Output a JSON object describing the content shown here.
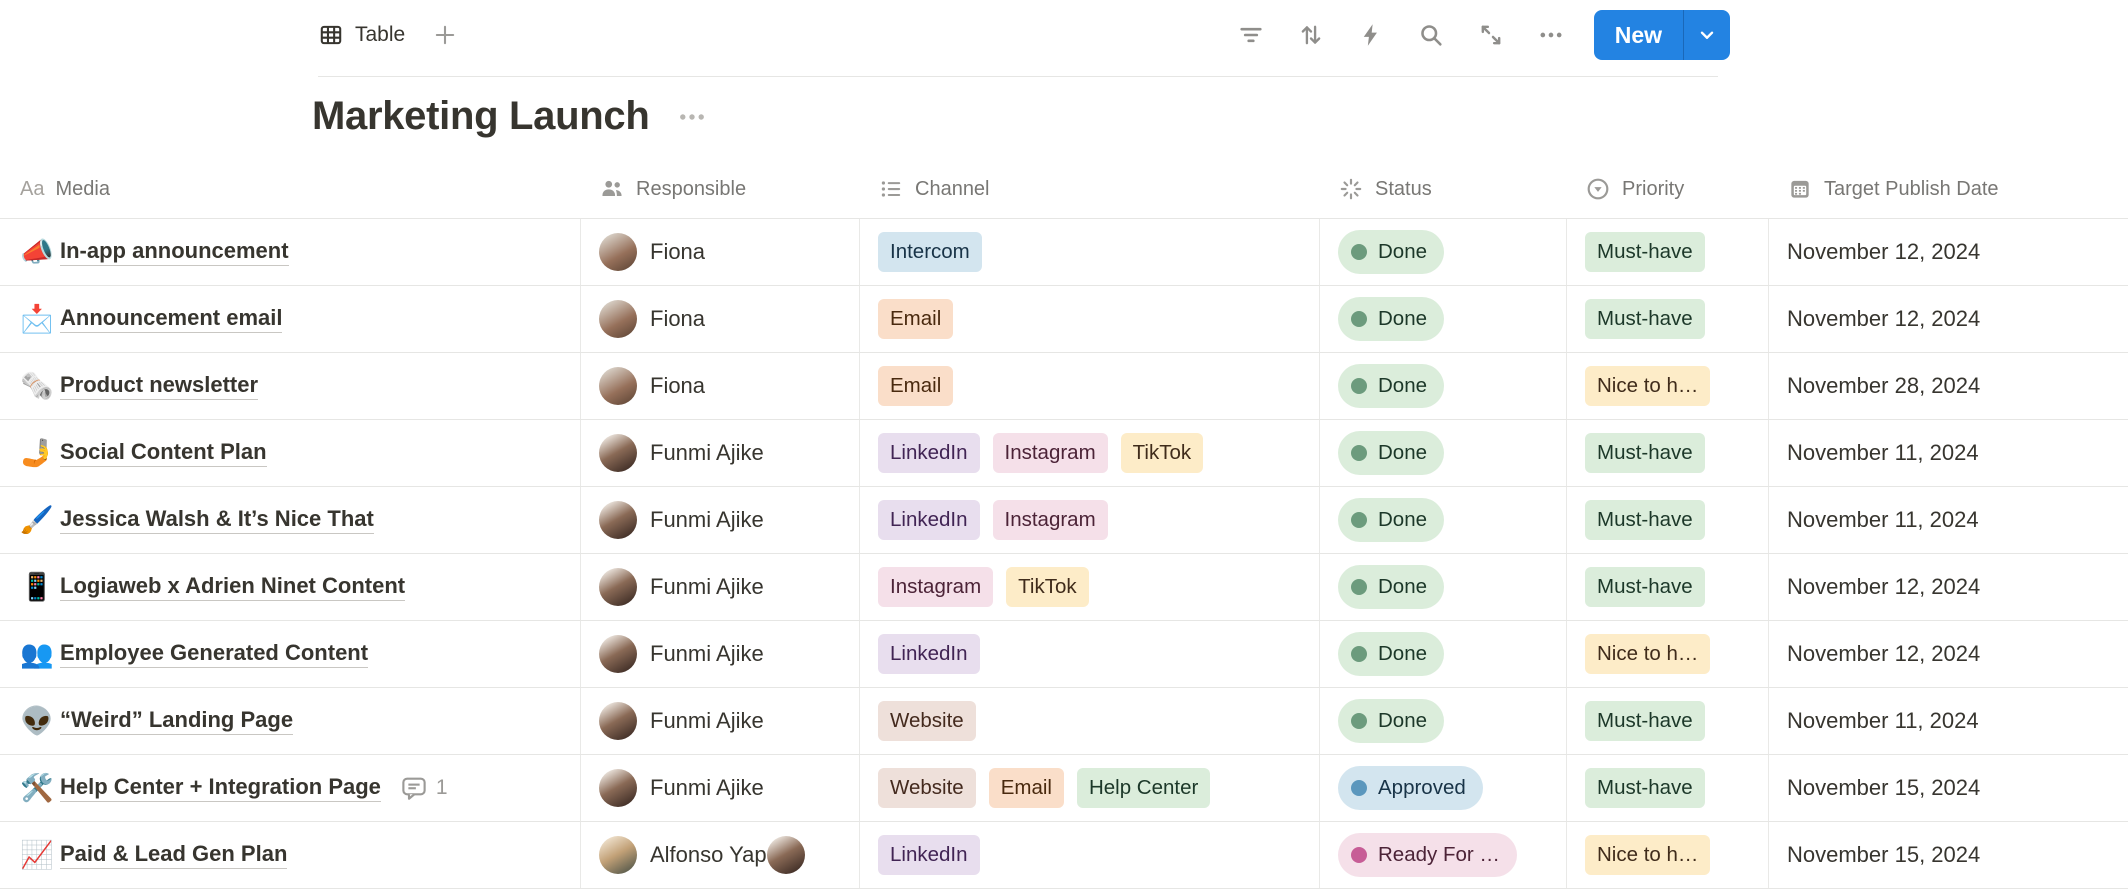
{
  "toolbar": {
    "view_tab": {
      "label": "Table",
      "icon": "table-grid-icon"
    },
    "add_view_icon": "plus-icon",
    "action_icons": [
      "filter-icon",
      "sort-icon",
      "automation-icon",
      "search-icon",
      "expand-icon",
      "more-icon"
    ],
    "new_button": {
      "label": "New",
      "chevron_icon": "chevron-down-icon"
    }
  },
  "page": {
    "title": "Marketing Launch",
    "title_more_icon": "more-icon"
  },
  "colors": {
    "accent_blue": "#2383e2",
    "row_border": "#e9e9e7",
    "header_text": "#787774",
    "tags": {
      "blue": {
        "bg": "#d3e5ef",
        "text": "#183347"
      },
      "orange": {
        "bg": "#fadec9",
        "text": "#49290e"
      },
      "purple": {
        "bg": "#e8deee",
        "text": "#412454"
      },
      "pink": {
        "bg": "#f5e0e9",
        "text": "#4c2337"
      },
      "yellow": {
        "bg": "#fdecc8",
        "text": "#402c1b"
      },
      "brown": {
        "bg": "#eee0da",
        "text": "#442a1e"
      },
      "green": {
        "bg": "#dbeddb",
        "text": "#1c3829"
      }
    },
    "status": {
      "green": {
        "bg": "#dbeddb",
        "dot": "#6c9b7d",
        "text": "#1c3829"
      },
      "blue": {
        "bg": "#d3e5ef",
        "dot": "#5b97bd",
        "text": "#183347"
      },
      "pink": {
        "bg": "#f5e0e9",
        "dot": "#c75d96",
        "text": "#4c2337"
      }
    }
  },
  "table": {
    "columns": [
      {
        "label": "Media",
        "icon": "text-property-icon",
        "icon_glyph": "Aa"
      },
      {
        "label": "Responsible",
        "icon": "people-icon"
      },
      {
        "label": "Channel",
        "icon": "list-icon"
      },
      {
        "label": "Status",
        "icon": "status-icon"
      },
      {
        "label": "Priority",
        "icon": "select-icon"
      },
      {
        "label": "Target Publish Date",
        "icon": "calendar-icon"
      }
    ],
    "rows": [
      {
        "emoji": "📣",
        "title": "In-app announcement",
        "people": [
          {
            "name": "Fiona",
            "avatar": "fiona"
          }
        ],
        "channels": [
          {
            "label": "Intercom",
            "color": "blue"
          }
        ],
        "status": {
          "label": "Done",
          "color": "green"
        },
        "priority": {
          "label": "Must-have",
          "color": "green"
        },
        "date": "November 12, 2024"
      },
      {
        "emoji": "📩",
        "title": "Announcement email",
        "people": [
          {
            "name": "Fiona",
            "avatar": "fiona"
          }
        ],
        "channels": [
          {
            "label": "Email",
            "color": "orange"
          }
        ],
        "status": {
          "label": "Done",
          "color": "green"
        },
        "priority": {
          "label": "Must-have",
          "color": "green"
        },
        "date": "November 12, 2024"
      },
      {
        "emoji": "🗞️",
        "title": "Product newsletter",
        "people": [
          {
            "name": "Fiona",
            "avatar": "fiona"
          }
        ],
        "channels": [
          {
            "label": "Email",
            "color": "orange"
          }
        ],
        "status": {
          "label": "Done",
          "color": "green"
        },
        "priority": {
          "label": "Nice to h…",
          "color": "yellow"
        },
        "date": "November 28, 2024"
      },
      {
        "emoji": "🤳",
        "title": "Social Content Plan",
        "people": [
          {
            "name": "Funmi Ajike",
            "avatar": "funmi"
          }
        ],
        "channels": [
          {
            "label": "LinkedIn",
            "color": "purple"
          },
          {
            "label": "Instagram",
            "color": "pink"
          },
          {
            "label": "TikTok",
            "color": "yellow"
          }
        ],
        "status": {
          "label": "Done",
          "color": "green"
        },
        "priority": {
          "label": "Must-have",
          "color": "green"
        },
        "date": "November 11, 2024"
      },
      {
        "emoji": "🖌️",
        "title": "Jessica Walsh & It’s Nice That",
        "people": [
          {
            "name": "Funmi Ajike",
            "avatar": "funmi"
          }
        ],
        "channels": [
          {
            "label": "LinkedIn",
            "color": "purple"
          },
          {
            "label": "Instagram",
            "color": "pink"
          }
        ],
        "status": {
          "label": "Done",
          "color": "green"
        },
        "priority": {
          "label": "Must-have",
          "color": "green"
        },
        "date": "November 11, 2024"
      },
      {
        "emoji": "📱",
        "title": "Logiaweb x Adrien Ninet Content",
        "people": [
          {
            "name": "Funmi Ajike",
            "avatar": "funmi"
          }
        ],
        "channels": [
          {
            "label": "Instagram",
            "color": "pink"
          },
          {
            "label": "TikTok",
            "color": "yellow"
          }
        ],
        "status": {
          "label": "Done",
          "color": "green"
        },
        "priority": {
          "label": "Must-have",
          "color": "green"
        },
        "date": "November 12, 2024"
      },
      {
        "emoji": "👥",
        "title": "Employee Generated Content",
        "people": [
          {
            "name": "Funmi Ajike",
            "avatar": "funmi"
          }
        ],
        "channels": [
          {
            "label": "LinkedIn",
            "color": "purple"
          }
        ],
        "status": {
          "label": "Done",
          "color": "green"
        },
        "priority": {
          "label": "Nice to h…",
          "color": "yellow"
        },
        "date": "November 12, 2024"
      },
      {
        "emoji": "👽",
        "title": "“Weird” Landing Page",
        "people": [
          {
            "name": "Funmi Ajike",
            "avatar": "funmi"
          }
        ],
        "channels": [
          {
            "label": "Website",
            "color": "brown"
          }
        ],
        "status": {
          "label": "Done",
          "color": "green"
        },
        "priority": {
          "label": "Must-have",
          "color": "green"
        },
        "date": "November 11, 2024"
      },
      {
        "emoji": "🛠️",
        "title": "Help Center + Integration Page",
        "comments": "1",
        "people": [
          {
            "name": "Funmi Ajike",
            "avatar": "funmi"
          }
        ],
        "channels": [
          {
            "label": "Website",
            "color": "brown"
          },
          {
            "label": "Email",
            "color": "orange"
          },
          {
            "label": "Help Center",
            "color": "green"
          }
        ],
        "status": {
          "label": "Approved",
          "color": "blue"
        },
        "priority": {
          "label": "Must-have",
          "color": "green"
        },
        "date": "November 15, 2024"
      },
      {
        "emoji": "📈",
        "title": "Paid & Lead Gen Plan",
        "people": [
          {
            "name": "Alfonso Yap",
            "avatar": "alfonso"
          },
          {
            "name": "",
            "avatar": "funmi"
          }
        ],
        "channels": [
          {
            "label": "LinkedIn",
            "color": "purple"
          }
        ],
        "status": {
          "label": "Ready For …",
          "color": "pink"
        },
        "priority": {
          "label": "Nice to h…",
          "color": "yellow"
        },
        "date": "November 15, 2024"
      }
    ]
  }
}
